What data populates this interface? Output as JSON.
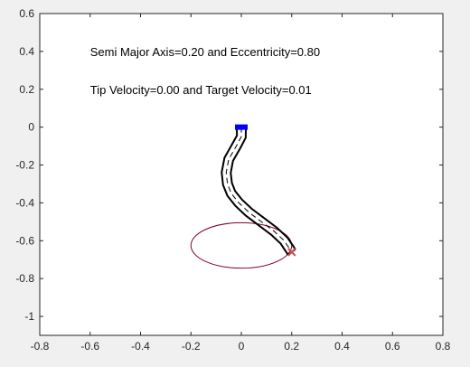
{
  "chart_data": {
    "type": "line",
    "title": "",
    "xlabel": "",
    "ylabel": "",
    "xlim": [
      -0.8,
      0.8
    ],
    "ylim": [
      -1.1,
      0.6
    ],
    "xticks": [
      -0.8,
      -0.6,
      -0.4,
      -0.2,
      0,
      0.2,
      0.4,
      0.6,
      0.8
    ],
    "xtick_labels": [
      "-0.8",
      "-0.6",
      "-0.4",
      "-0.2",
      "0",
      "0.2",
      "0.4",
      "0.6",
      "0.8"
    ],
    "yticks": [
      0.6,
      0.4,
      0.2,
      0,
      -0.2,
      -0.4,
      -0.6,
      -0.8,
      -1
    ],
    "ytick_labels": [
      "0.6",
      "0.4",
      "0.2",
      "0",
      "-0.2",
      "-0.4",
      "-0.6",
      "-0.8",
      "-1"
    ],
    "grid": false,
    "annotations": [
      {
        "text": "Semi Major Axis=0.20 and Eccentricity=0.80",
        "x": -0.6,
        "y": 0.4
      },
      {
        "text": "Tip Velocity=0.00 and Target Velocity=0.01",
        "x": -0.6,
        "y": 0.2
      }
    ],
    "target_ellipse": {
      "center": [
        0,
        -0.625
      ],
      "semi_major": 0.2,
      "semi_minor": 0.12,
      "color": "#800020"
    },
    "robot_base": {
      "x": 0,
      "y": 0,
      "color": "#0000ff"
    },
    "robot_tip": {
      "x": 0.2,
      "y": -0.66
    },
    "target_marker": {
      "x": 0.2,
      "y": -0.66,
      "color": "#c0504d"
    },
    "robot_centerline": {
      "x": [
        0,
        0,
        -0.02,
        -0.05,
        -0.06,
        -0.055,
        -0.04,
        -0.01,
        0.03,
        0.08,
        0.13,
        0.17,
        0.2
      ],
      "y": [
        0,
        -0.05,
        -0.1,
        -0.17,
        -0.24,
        -0.3,
        -0.35,
        -0.4,
        -0.45,
        -0.5,
        -0.55,
        -0.6,
        -0.66
      ]
    },
    "body_half_width": 0.018
  }
}
